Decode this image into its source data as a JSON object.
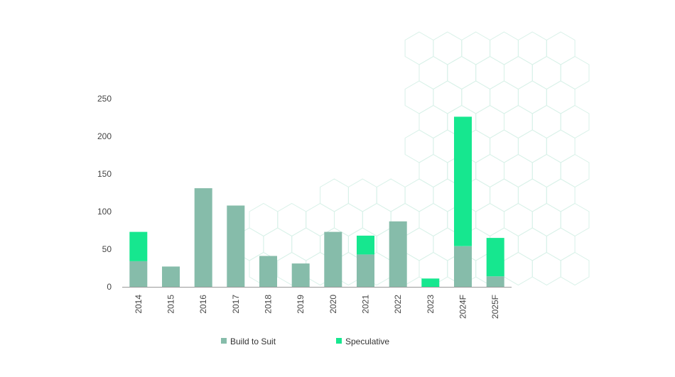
{
  "chart_data": {
    "type": "bar",
    "stacked": true,
    "categories": [
      "2014",
      "2015",
      "2016",
      "2017",
      "2018",
      "2019",
      "2020",
      "2021",
      "2022",
      "2023",
      "2024F",
      "2025F"
    ],
    "series": [
      {
        "name": "Build to Suit",
        "color": "#86bcaa",
        "values": [
          34,
          27,
          131,
          108,
          41,
          31,
          73,
          43,
          87,
          0,
          54,
          14
        ]
      },
      {
        "name": "Speculative",
        "color": "#16e78f",
        "values": [
          39,
          0,
          0,
          0,
          0,
          0,
          0,
          25,
          0,
          11,
          172,
          51
        ]
      }
    ],
    "yticks": [
      "0",
      "50",
      "100",
      "150",
      "200",
      "250"
    ],
    "ylim": [
      0,
      250
    ],
    "grid": false,
    "legend_position": "bottom",
    "title": "",
    "xlabel": "",
    "ylabel": ""
  },
  "decoration": {
    "background_pattern": "hexagon-outline-pattern",
    "pattern_color": "#d8f1e8"
  }
}
